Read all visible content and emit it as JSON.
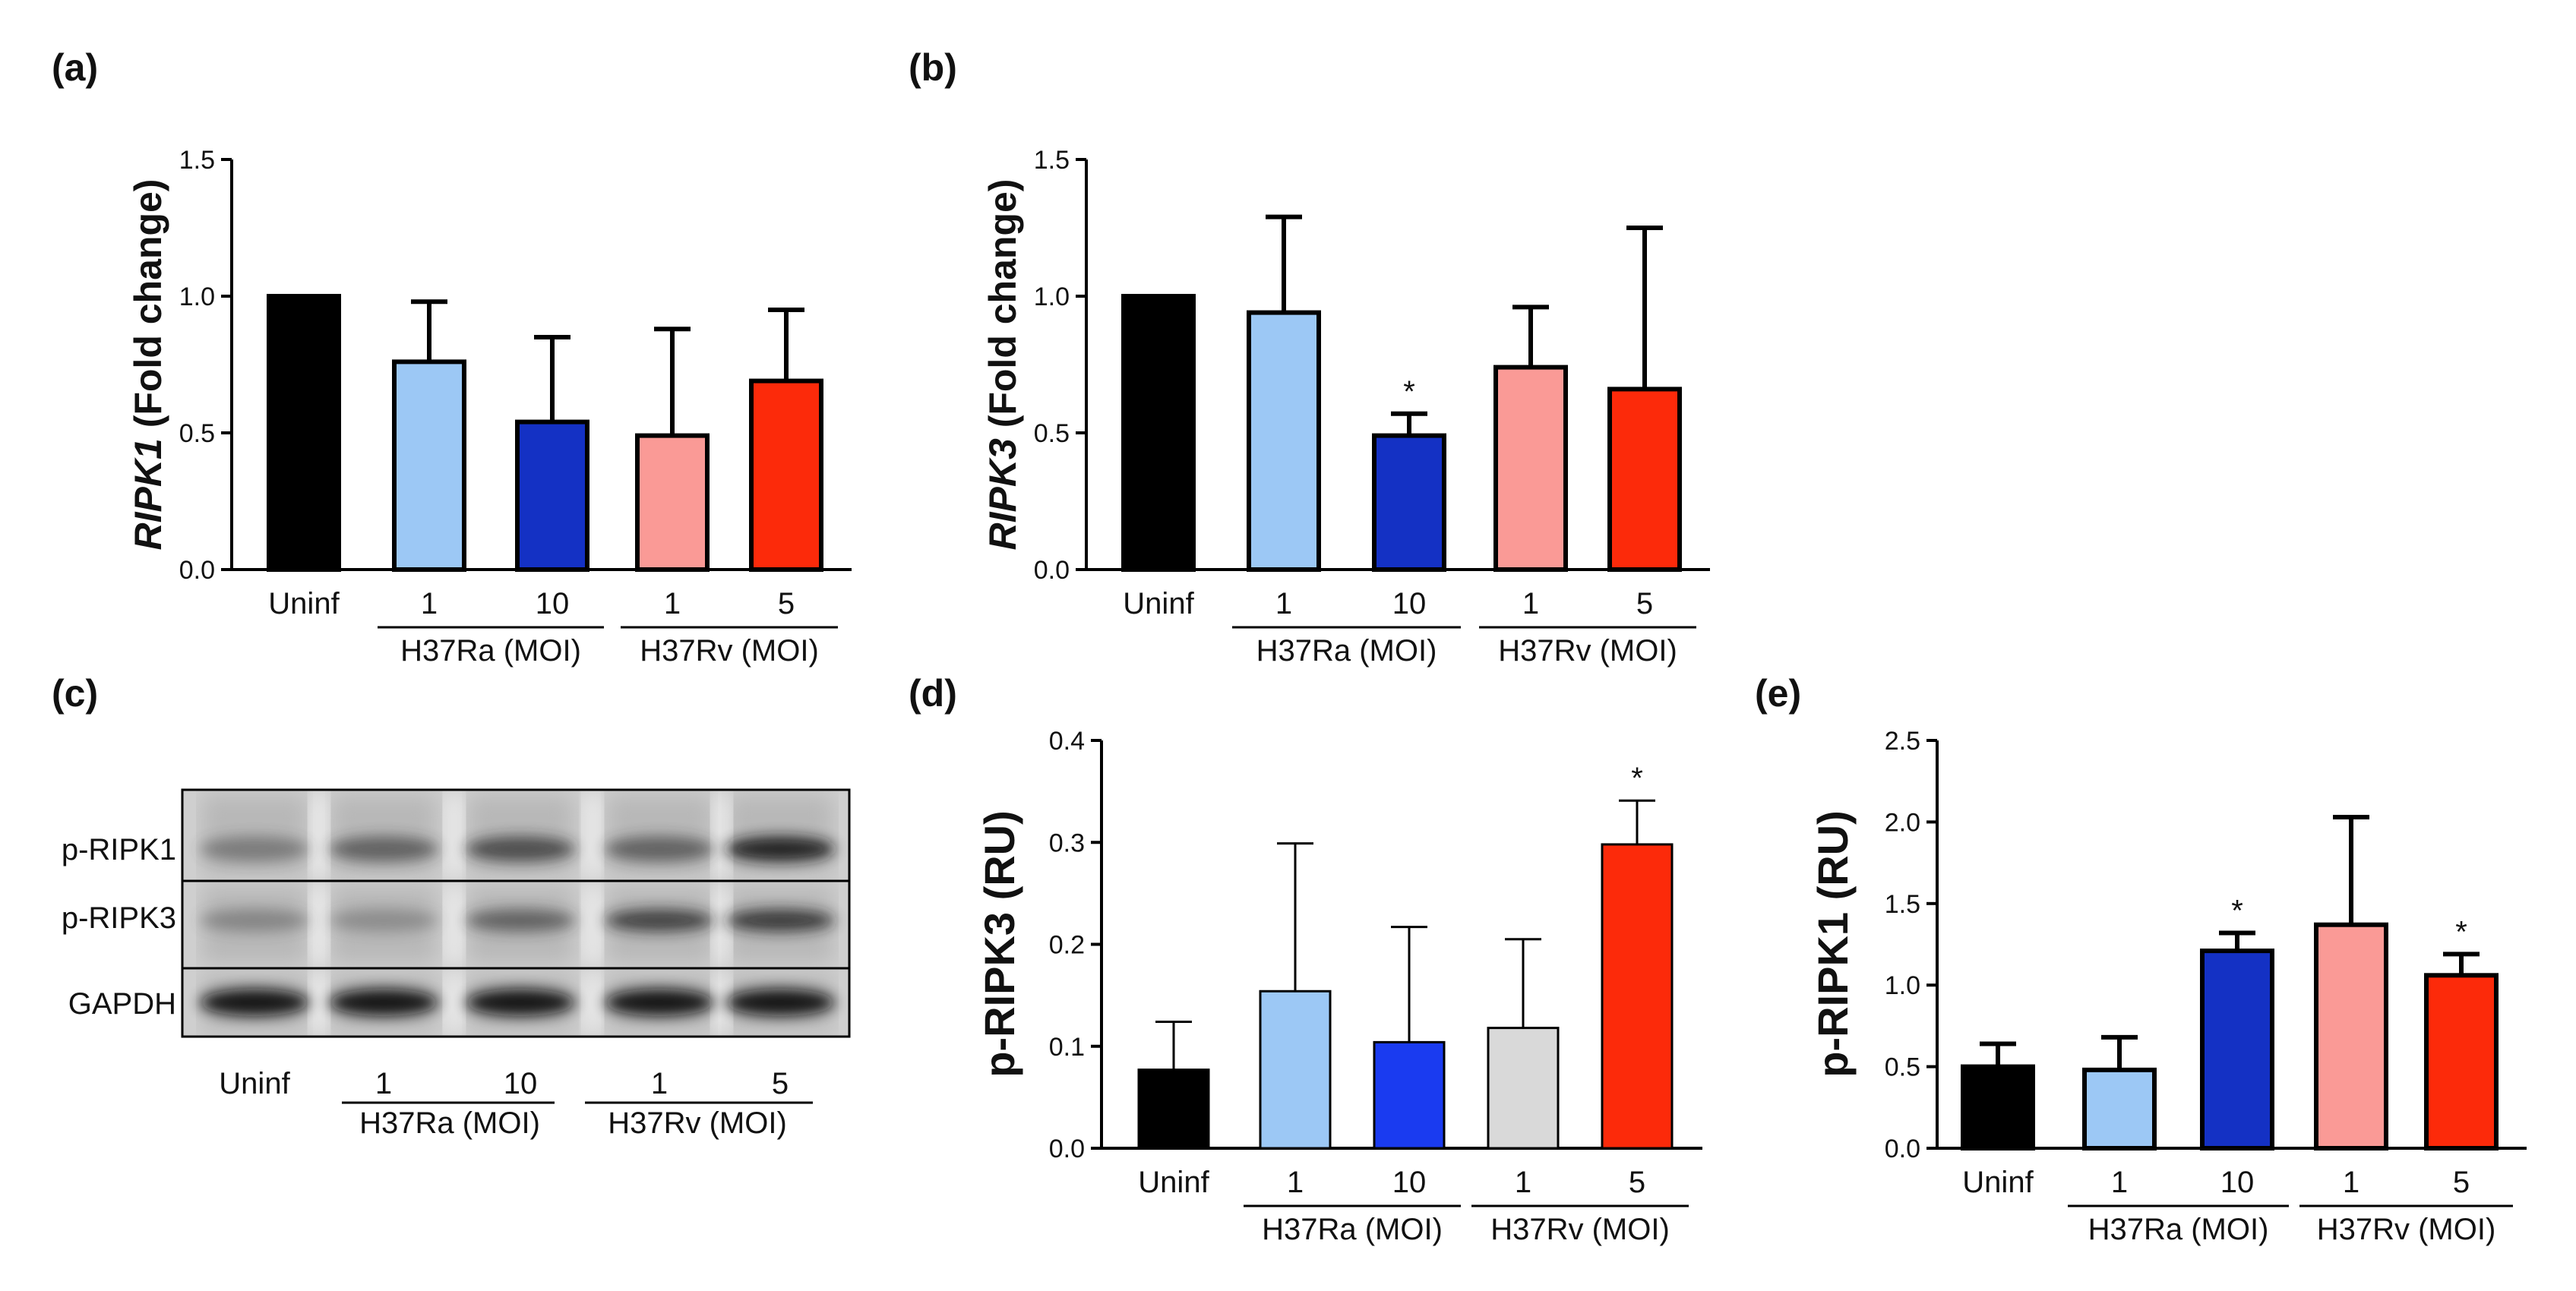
{
  "figure": {
    "description_labels": [
      "(a)",
      "(b)",
      "(c)",
      "(d)",
      "(e)"
    ]
  },
  "colors": {
    "uninf": "#000000",
    "ra_low": "#9cc8f5",
    "ra_high_dark": "#1431c4",
    "ra_high_bright": "#1a3bf0",
    "rv_low": "#fa9a96",
    "rv_low_grey": "#d9d9d9",
    "rv_high": "#fc2a0a",
    "axis": "#000000"
  },
  "blot": {
    "panel_label": "(c)",
    "row_labels": [
      "p-RIPK1",
      "p-RIPK3",
      "GAPDH"
    ],
    "lane_labels": [
      "Uninf",
      "1",
      "10",
      "1",
      "5"
    ],
    "group_labels": [
      "H37Ra (MOI)",
      "H37Rv (MOI)"
    ]
  },
  "chart_data": [
    {
      "panel": "(a)",
      "type": "bar",
      "ylabel_italic": "RIPK1",
      "ylabel_rest": " (Fold change)",
      "ylim": [
        0,
        1.5
      ],
      "yticks": [
        "0.0",
        "0.5",
        "1.0",
        "1.5"
      ],
      "categories": [
        "Uninf",
        "1",
        "10",
        "1",
        "5"
      ],
      "groups": [
        {
          "label": "H37Ra (MOI)",
          "from": 1,
          "to": 2
        },
        {
          "label": "H37Rv (MOI)",
          "from": 3,
          "to": 4
        }
      ],
      "values": [
        1.0,
        0.76,
        0.54,
        0.49,
        0.69
      ],
      "errors": [
        0,
        0.22,
        0.31,
        0.39,
        0.26
      ],
      "significance": [
        "",
        "",
        "",
        "",
        ""
      ],
      "colors": [
        "#000000",
        "#9cc8f5",
        "#1431c4",
        "#fa9a96",
        "#fc2a0a"
      ],
      "style": "thick"
    },
    {
      "panel": "(b)",
      "type": "bar",
      "ylabel_italic": "RIPK3",
      "ylabel_rest": " (Fold change)",
      "ylim": [
        0,
        1.5
      ],
      "yticks": [
        "0.0",
        "0.5",
        "1.0",
        "1.5"
      ],
      "categories": [
        "Uninf",
        "1",
        "10",
        "1",
        "5"
      ],
      "groups": [
        {
          "label": "H37Ra (MOI)",
          "from": 1,
          "to": 2
        },
        {
          "label": "H37Rv (MOI)",
          "from": 3,
          "to": 4
        }
      ],
      "values": [
        1.0,
        0.94,
        0.49,
        0.74,
        0.66
      ],
      "errors": [
        0,
        0.35,
        0.08,
        0.22,
        0.59
      ],
      "significance": [
        "",
        "",
        "*",
        "",
        ""
      ],
      "colors": [
        "#000000",
        "#9cc8f5",
        "#1431c4",
        "#fa9a96",
        "#fc2a0a"
      ],
      "style": "thick"
    },
    {
      "panel": "(d)",
      "type": "bar",
      "ylabel_italic": "",
      "ylabel_rest": "p-RIPK3 (RU)",
      "ylim": [
        0,
        0.4
      ],
      "yticks": [
        "0.0",
        "0.1",
        "0.2",
        "0.3",
        "0.4"
      ],
      "categories": [
        "Uninf",
        "1",
        "10",
        "1",
        "5"
      ],
      "groups": [
        {
          "label": "H37Ra (MOI)",
          "from": 1,
          "to": 2
        },
        {
          "label": "H37Rv (MOI)",
          "from": 3,
          "to": 4
        }
      ],
      "values": [
        0.077,
        0.154,
        0.104,
        0.118,
        0.298
      ],
      "errors": [
        0.047,
        0.145,
        0.113,
        0.087,
        0.043
      ],
      "significance": [
        "",
        "",
        "",
        "",
        "*"
      ],
      "colors": [
        "#000000",
        "#9cc8f5",
        "#1a3bf0",
        "#d9d9d9",
        "#fc2a0a"
      ],
      "style": "thin"
    },
    {
      "panel": "(e)",
      "type": "bar",
      "ylabel_italic": "",
      "ylabel_rest": "p-RIPK1 (RU)",
      "ylim": [
        0,
        2.5
      ],
      "yticks": [
        "0.0",
        "0.5",
        "1.0",
        "1.5",
        "2.0",
        "2.5"
      ],
      "categories": [
        "Uninf",
        "1",
        "10",
        "1",
        "5"
      ],
      "groups": [
        {
          "label": "H37Ra (MOI)",
          "from": 1,
          "to": 2
        },
        {
          "label": "H37Rv (MOI)",
          "from": 3,
          "to": 4
        }
      ],
      "values": [
        0.5,
        0.48,
        1.21,
        1.37,
        1.06
      ],
      "errors": [
        0.14,
        0.2,
        0.11,
        0.66,
        0.13
      ],
      "significance": [
        "",
        "",
        "*",
        "",
        "*"
      ],
      "colors": [
        "#000000",
        "#9cc8f5",
        "#1431c4",
        "#fa9a96",
        "#fc2a0a"
      ],
      "style": "thick"
    }
  ]
}
